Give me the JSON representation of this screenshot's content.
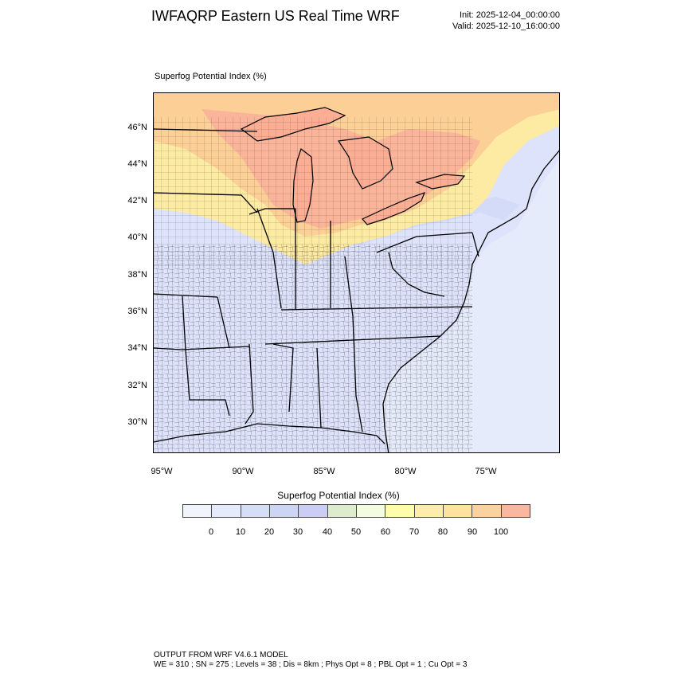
{
  "header": {
    "title": "IWFAQRP Eastern US Real Time WRF",
    "init": "Init: 2025-12-04_00:00:00",
    "valid": "Valid: 2025-12-10_16:00:00"
  },
  "map": {
    "field_label": "Superfog Potential Index   (%)",
    "lat_labels": [
      "46°N",
      "44°N",
      "42°N",
      "40°N",
      "38°N",
      "36°N",
      "34°N",
      "32°N",
      "30°N"
    ],
    "lon_labels": [
      "95°W",
      "90°W",
      "85°W",
      "80°W",
      "75°W"
    ],
    "colors": {
      "ocean": "#e6ebfb",
      "low_blue": "#dde3fb",
      "mid_blue": "#cfd8f7",
      "yellow": "#fdeaa3",
      "orange": "#fbcf96",
      "salmon": "#f9b49a",
      "lake": "#fbae94",
      "boundary": "#000000"
    }
  },
  "legend": {
    "title": "Superfog Potential Index  (%)",
    "labels": [
      "0",
      "10",
      "20",
      "30",
      "40",
      "50",
      "60",
      "70",
      "80",
      "90",
      "100"
    ],
    "colors": [
      "#f2f4fb",
      "#e6ebfb",
      "#d6ddf7",
      "#cdd5f5",
      "#cbcdf4",
      "#dceccd",
      "#f3fbe0",
      "#fdfdac",
      "#fdecac",
      "#fde2a0",
      "#fbd29e",
      "#f9b7a0"
    ]
  },
  "footer": {
    "line1": "OUTPUT FROM WRF V4.6.1 MODEL",
    "line2": "WE = 310 ; SN = 275 ; Levels = 38 ; Dis = 8km ; Phys Opt = 8 ; PBL Opt = 1 ; Cu Opt = 3"
  }
}
